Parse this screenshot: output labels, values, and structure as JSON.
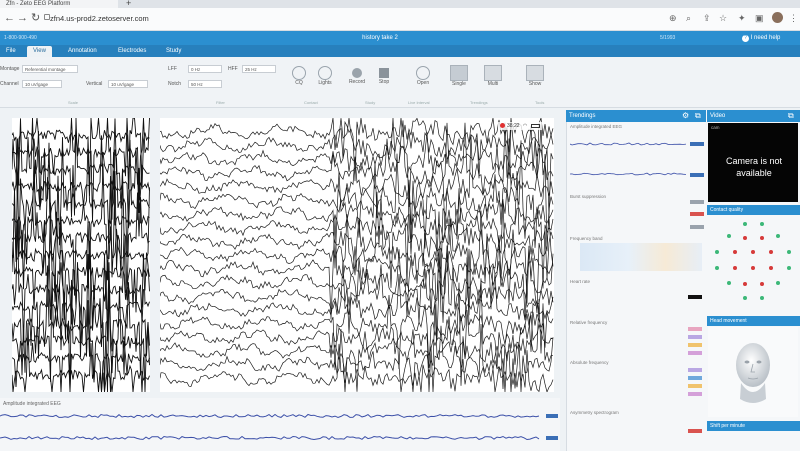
{
  "browser": {
    "tab_title": "Zfn - Zeto EEG Platform",
    "new_tab": "+",
    "url": "zfn4.us-prod2.zetoserver.com",
    "icons": [
      "back-icon",
      "forward-icon",
      "reload-icon",
      "site-info-icon",
      "zoom-icon",
      "share-icon",
      "star-icon",
      "extensions-icon",
      "sidebar-icon",
      "profile-icon",
      "menu-icon"
    ]
  },
  "app": {
    "serial": "1-800-900-490",
    "title": "history take 2",
    "right_info": "5/1993",
    "help": "I need help"
  },
  "menu": {
    "tabs": [
      {
        "label": "File"
      },
      {
        "label": "View"
      },
      {
        "label": "Annotation"
      },
      {
        "label": "Electrodes"
      },
      {
        "label": "Study"
      }
    ],
    "active": "View"
  },
  "toolbar": {
    "montage_label": "Montage",
    "montage_value": "Referential montage",
    "channel_label": "Channel",
    "channel_value": "10 uV/gage",
    "vertical_label": "Vertical",
    "vertical_value": "10 uV/gage",
    "lff_label": "LFF",
    "lff_value": "0 Hz",
    "notch_label": "Notch",
    "notch_value": "50 Hz",
    "hff_label": "HFF",
    "hff_value": "25 Hz",
    "buttons": [
      {
        "label": "CQ",
        "icon": "contact-quality-icon"
      },
      {
        "label": "Lights",
        "icon": "light-icon"
      },
      {
        "label": "Record",
        "icon": "record-icon"
      },
      {
        "label": "Stop",
        "icon": "stop-icon"
      },
      {
        "label": "Open",
        "icon": "open-icon"
      },
      {
        "label": "Single",
        "icon": "single-view-icon"
      },
      {
        "label": "Multi",
        "icon": "multi-view-icon"
      },
      {
        "label": "Show",
        "icon": "show-icon"
      }
    ],
    "sections": [
      "Scale",
      "Filter",
      "Contact",
      "Study",
      "Live Interval",
      "Trendings",
      "Tools"
    ]
  },
  "eeg": {
    "status_time": "38:22",
    "status_icons": [
      "record-dot-icon",
      "wifi-icon",
      "battery-icon"
    ],
    "left_channels": 15,
    "main_channels": 19
  },
  "bottom_trend": {
    "title": "Amplitude integrated EEG"
  },
  "trendings": {
    "title": "Trendings",
    "sections": [
      {
        "label": "Amplitude integrated EEG",
        "badges": [
          "#3b6fb6",
          "#3b6fb6"
        ]
      },
      {
        "label": "Burst suppression",
        "badges": [
          "#9aa3ad",
          "#d9534f",
          "#9aa3ad"
        ]
      },
      {
        "label": "Frequency band",
        "badges": []
      },
      {
        "label": "Heart rate",
        "badges": [
          "#111111"
        ]
      },
      {
        "label": "Relative frequency",
        "badges": [
          "#e8a5c0",
          "#b9a7e3",
          "#f0c36d",
          "#d4a0d9"
        ]
      },
      {
        "label": "Absolute frequency",
        "badges": [
          "#b9a7e3",
          "#6fa8dc",
          "#f0c36d",
          "#d4a0d9"
        ]
      },
      {
        "label": "Asymmetry spectrogram",
        "badges": [
          "#d9534f"
        ]
      }
    ],
    "accent": "#2b8fd0"
  },
  "video": {
    "title": "Video",
    "subtitle": "cam",
    "camera_message": "Camera is not available",
    "contact_quality": "Contact quality",
    "head_movement": "Head movement",
    "shift_label": "Shift per minute"
  }
}
